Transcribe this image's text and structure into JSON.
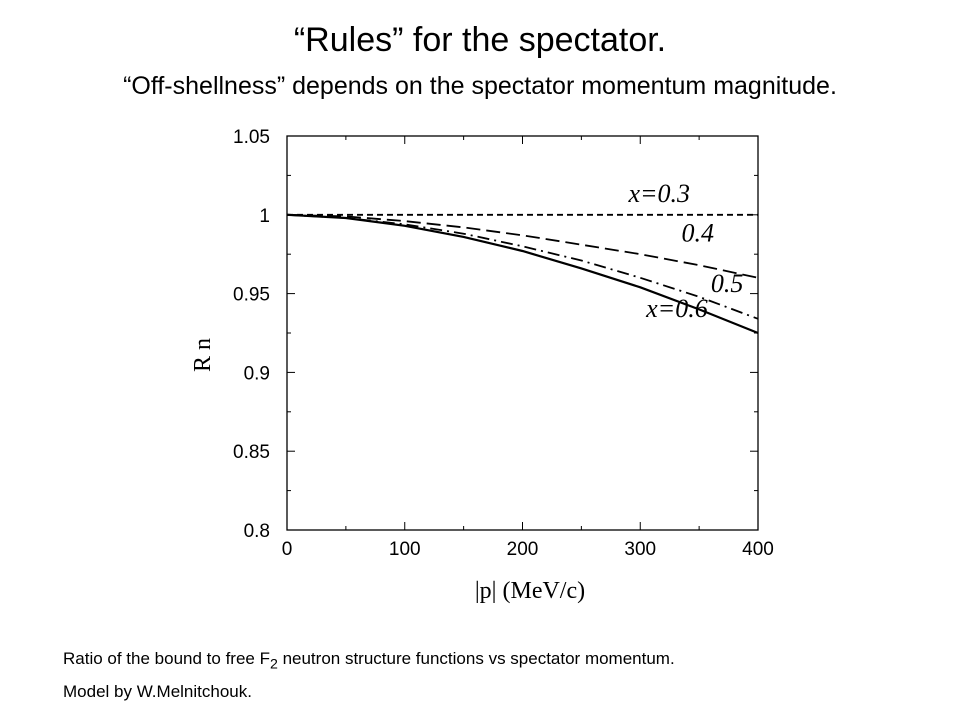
{
  "slide": {
    "title": "“Rules” for the spectator.",
    "subtitle": "“Off-shellness” depends on the spectator momentum magnitude."
  },
  "caption": {
    "line1_before_sub": "Ratio of the bound to free F",
    "line1_sub": "2",
    "line1_after_sub": " neutron structure functions vs spectator momentum.",
    "line2": "Model by W.Melnitchouk."
  },
  "chart_data": {
    "type": "line",
    "xlabel": "|p| (MeV/c)",
    "ylabel": "R n",
    "xlim": [
      0,
      400
    ],
    "ylim": [
      0.8,
      1.05
    ],
    "xticks": [
      0,
      100,
      200,
      300,
      400
    ],
    "yticks": [
      0.8,
      0.85,
      0.9,
      0.95,
      1,
      1.05
    ],
    "ytick_labels": [
      "0.8",
      "0.85",
      "0.9",
      "0.95",
      "1",
      "1.05"
    ],
    "grid": false,
    "series": [
      {
        "name": "x=0.3",
        "style": "short-dash",
        "x": [
          0,
          50,
          100,
          150,
          200,
          250,
          300,
          350,
          400
        ],
        "y": [
          1.0,
          1.0,
          1.0,
          1.0,
          1.0,
          1.0,
          1.0,
          1.0,
          1.0
        ]
      },
      {
        "name": "0.4",
        "style": "long-dash",
        "x": [
          0,
          50,
          100,
          150,
          200,
          250,
          300,
          350,
          400
        ],
        "y": [
          1.0,
          0.999,
          0.996,
          0.992,
          0.987,
          0.981,
          0.975,
          0.968,
          0.96
        ]
      },
      {
        "name": "0.5",
        "style": "dash-dot",
        "x": [
          0,
          50,
          100,
          150,
          200,
          250,
          300,
          350,
          400
        ],
        "y": [
          1.0,
          0.998,
          0.994,
          0.988,
          0.98,
          0.971,
          0.96,
          0.948,
          0.934
        ]
      },
      {
        "name": "x=0.6",
        "style": "solid",
        "x": [
          0,
          50,
          100,
          150,
          200,
          250,
          300,
          350,
          400
        ],
        "y": [
          1.0,
          0.998,
          0.993,
          0.986,
          0.977,
          0.966,
          0.954,
          0.94,
          0.925
        ]
      }
    ],
    "curve_labels": [
      {
        "text": "x=0.3",
        "x": 290,
        "y": 1.008
      },
      {
        "text": "0.4",
        "x": 335,
        "y": 0.983
      },
      {
        "text": "0.5",
        "x": 360,
        "y": 0.951
      },
      {
        "text": "x=0.6",
        "x": 305,
        "y": 0.935
      }
    ]
  }
}
